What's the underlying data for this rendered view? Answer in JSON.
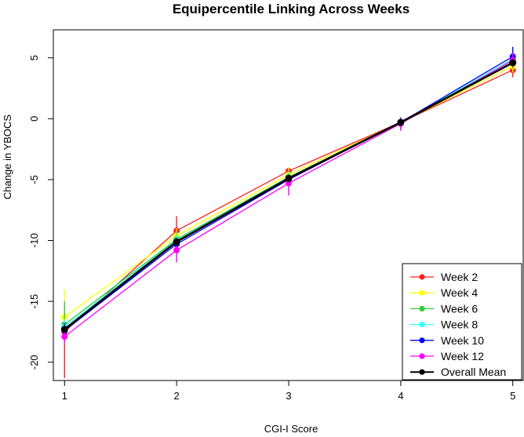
{
  "chart_data": {
    "type": "line",
    "title": "Equipercentile Linking Across Weeks",
    "xlabel": "CGI-I Score",
    "ylabel": "Change in YBOCS",
    "x": [
      1,
      2,
      3,
      4,
      5
    ],
    "xlim": [
      0.9,
      5.1
    ],
    "ylim": [
      -21.5,
      7.3
    ],
    "xticks": [
      "1",
      "2",
      "3",
      "4",
      "5"
    ],
    "yticks": [
      -20,
      -15,
      -10,
      -5,
      0,
      5
    ],
    "ytick_labels": [
      "-20",
      "-15",
      "-10",
      "-5",
      "0",
      "5"
    ],
    "legend_position": "bottom-right",
    "series": [
      {
        "name": "Week 2",
        "color": "#ff2020",
        "values": [
          -17.5,
          -9.2,
          -4.3,
          -0.3,
          4.0
        ],
        "err_low": [
          -21.3,
          -10.3,
          -4.8,
          -0.9,
          3.4
        ],
        "err_high": [
          -16.2,
          -8.0,
          -4.0,
          0.0,
          4.5
        ]
      },
      {
        "name": "Week 4",
        "color": "#ffff00",
        "values": [
          -16.3,
          -9.6,
          -4.6,
          -0.3,
          4.3
        ],
        "err_low": [
          -17.0,
          -10.3,
          -5.2,
          -0.8,
          3.8
        ],
        "err_high": [
          -14.0,
          -9.0,
          -4.0,
          0.1,
          4.8
        ]
      },
      {
        "name": "Week 6",
        "color": "#33cc33",
        "values": [
          -16.9,
          -9.9,
          -4.8,
          -0.3,
          4.6
        ],
        "err_low": [
          -17.6,
          -10.6,
          -5.3,
          -0.8,
          4.1
        ],
        "err_high": [
          -15.0,
          -9.3,
          -4.3,
          0.1,
          5.0
        ]
      },
      {
        "name": "Week 8",
        "color": "#33ffff",
        "values": [
          -17.1,
          -10.0,
          -4.9,
          -0.3,
          4.9
        ],
        "err_low": [
          -17.8,
          -10.6,
          -5.4,
          -0.8,
          4.4
        ],
        "err_high": [
          -16.4,
          -9.4,
          -4.4,
          0.1,
          5.6
        ]
      },
      {
        "name": "Week 10",
        "color": "#0000ff",
        "values": [
          -17.4,
          -10.3,
          -5.0,
          -0.3,
          5.1
        ],
        "err_low": [
          -18.2,
          -10.9,
          -5.5,
          -0.8,
          4.6
        ],
        "err_high": [
          -16.8,
          -9.8,
          -4.6,
          0.1,
          5.9
        ]
      },
      {
        "name": "Week 12",
        "color": "#ff00ff",
        "values": [
          -17.9,
          -10.8,
          -5.3,
          -0.4,
          4.8
        ],
        "err_low": [
          -18.5,
          -11.8,
          -6.3,
          -1.0,
          4.2
        ],
        "err_high": [
          -17.3,
          -10.1,
          -4.8,
          0.0,
          5.4
        ]
      },
      {
        "name": "Overall Mean",
        "color": "#000000",
        "values": [
          -17.3,
          -10.1,
          -4.9,
          -0.3,
          4.6
        ],
        "err_low": [
          -17.6,
          -10.4,
          -5.2,
          -0.5,
          4.3
        ],
        "err_high": [
          -17.0,
          -9.8,
          -4.6,
          -0.1,
          4.9
        ]
      }
    ]
  }
}
